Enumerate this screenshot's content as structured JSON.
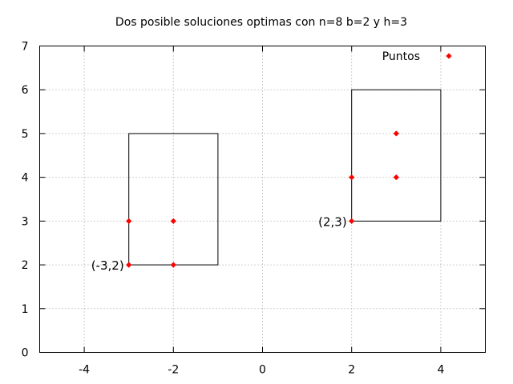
{
  "chart_data": {
    "type": "scatter",
    "title": "Dos posible soluciones optimas con n=8  b=2 y h=3",
    "xlabel": "",
    "ylabel": "",
    "xlim": [
      -5,
      5
    ],
    "ylim": [
      0,
      7
    ],
    "xticks": [
      -4,
      -2,
      0,
      2,
      4
    ],
    "yticks": [
      0,
      1,
      2,
      3,
      4,
      5,
      6,
      7
    ],
    "grid": true,
    "legend": "top-right",
    "series": [
      {
        "name": "Puntos",
        "color": "#ff0000",
        "points": [
          {
            "x": -3,
            "y": 2
          },
          {
            "x": -3,
            "y": 3
          },
          {
            "x": -2,
            "y": 2
          },
          {
            "x": -2,
            "y": 3
          },
          {
            "x": 2,
            "y": 3
          },
          {
            "x": 2,
            "y": 4
          },
          {
            "x": 3,
            "y": 4
          },
          {
            "x": 3,
            "y": 5
          }
        ]
      }
    ],
    "rectangles": [
      {
        "x0": -3,
        "y0": 2,
        "x1": -1,
        "y1": 5
      },
      {
        "x0": 2,
        "y0": 3,
        "x1": 4,
        "y1": 6
      }
    ],
    "annotations": [
      {
        "text": "(-3,2)",
        "x": -3,
        "y": 2
      },
      {
        "text": "(2,3)",
        "x": 2,
        "y": 3
      }
    ]
  }
}
